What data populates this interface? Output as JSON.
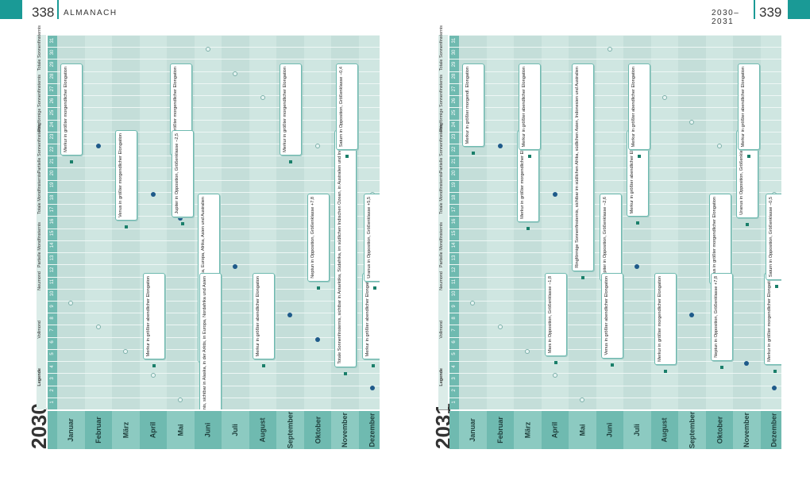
{
  "left_page": {
    "page_number": "338",
    "section": "ALMANACH",
    "year": "2030"
  },
  "right_page": {
    "page_number": "339",
    "section": "2030–2031",
    "year": "2031"
  },
  "months": [
    "Januar",
    "Februar",
    "März",
    "April",
    "Mai",
    "Juni",
    "Juli",
    "August",
    "September",
    "Oktober",
    "November",
    "Dezember"
  ],
  "days": [
    "1",
    "2",
    "3",
    "4",
    "5",
    "6",
    "7",
    "8",
    "9",
    "10",
    "11",
    "12",
    "13",
    "14",
    "15",
    "16",
    "17",
    "18",
    "19",
    "20",
    "21",
    "22",
    "23",
    "24",
    "25",
    "26",
    "27",
    "28",
    "29",
    "30",
    "31"
  ],
  "legend": {
    "title": "Legende",
    "items": [
      "Vollmond",
      "Neumond",
      "Partielle Mondfinsternis",
      "Totale Mondfinsternis",
      "Partielle Sonnenfinsternis",
      "Ringförmige Sonnenfinsternis",
      "Totale Sonnenfinsternis"
    ]
  },
  "callouts_2030": [
    {
      "month": "Januar",
      "text": "Merkur in größter morgendlicher Elongation"
    },
    {
      "month": "März",
      "text": "Venus in größter morgendlicher Elongation"
    },
    {
      "month": "April",
      "text": "Merkur in größter abendlicher Elongation"
    },
    {
      "month": "Mai",
      "text": "Merkur in größter morgendlicher Elongation"
    },
    {
      "month": "Mai",
      "text": "Jupiter in Opposition, Größenklasse −2,5"
    },
    {
      "month": "Juni",
      "text": "Partielle Mondfinsternis, sichtbar in Antarktika, Europa, Afrika, Asien und Australien"
    },
    {
      "month": "Juni",
      "text": "Ringförmige Sonnenfinsternis, sichtbar in Alaska, in der Arktis, in Europa, Nordafrika und Asien"
    },
    {
      "month": "August",
      "text": "Merkur in größter abendlicher Elongation"
    },
    {
      "month": "September",
      "text": "Merkur in größter morgendlicher Elongation"
    },
    {
      "month": "Oktober",
      "text": "Neptun in Opposition, Größenklasse +7,8"
    },
    {
      "month": "November",
      "text": "Totale Sonnenfinsternis, sichtbar in Antarktika, Südafrika, im südlichen Indischen Ozean, in Australien und Indonesien"
    },
    {
      "month": "November",
      "text": "Saturn in Opposition, Größenklasse −0,4"
    },
    {
      "month": "Dezember",
      "text": "Merkur in größter abendlicher Elongation"
    },
    {
      "month": "Dezember",
      "text": "Uranus in Opposition, Größenklasse +5,5"
    }
  ],
  "callouts_2031": [
    {
      "month": "Januar",
      "text": "Merkur in größter morgendl. Elongation"
    },
    {
      "month": "März",
      "text": "Merkur in größter morgendlicher Elongation"
    },
    {
      "month": "März",
      "text": "Merkur in größter abendlicher Elongation"
    },
    {
      "month": "April",
      "text": "Mars in Opposition, Größenklasse −1,8"
    },
    {
      "month": "Mai",
      "text": "Ringförmige Sonnenfinsternis, sichtbar im südlichen Afrika, südlichen Asien, Indonesien und Australien"
    },
    {
      "month": "Juni",
      "text": "Jupiter in Opposition, Größenklasse −2,6"
    },
    {
      "month": "Juni",
      "text": "Venus in größter abendlicher Elongation"
    },
    {
      "month": "Juli",
      "text": "Merkur in größter abendlicher Elongation"
    },
    {
      "month": "Juli",
      "text": "Merkur in größter abendlicher Elongation"
    },
    {
      "month": "August",
      "text": "Merkur in größter morgendlicher Elongation"
    },
    {
      "month": "Oktober",
      "text": "Venus in größter morgendlicher Elongation"
    },
    {
      "month": "Oktober",
      "text": "Neptun in Opposition, Größenklasse +7,8"
    },
    {
      "month": "November",
      "text": "Uranus in Opposition, Größenklasse +5,5"
    },
    {
      "month": "November",
      "text": "Merkur in größter abendlicher Elongation"
    },
    {
      "month": "Dezember",
      "text": "Merkur in größter morgendlicher Elongation"
    },
    {
      "month": "Dezember",
      "text": "Saturn in Opposition, Größenklasse −0,5"
    }
  ],
  "colors": {
    "accent": "#1a9a96",
    "full_moon": "#e6f4f2",
    "new_moon": "#1e5a8a",
    "eclipse": "#e6682c"
  }
}
